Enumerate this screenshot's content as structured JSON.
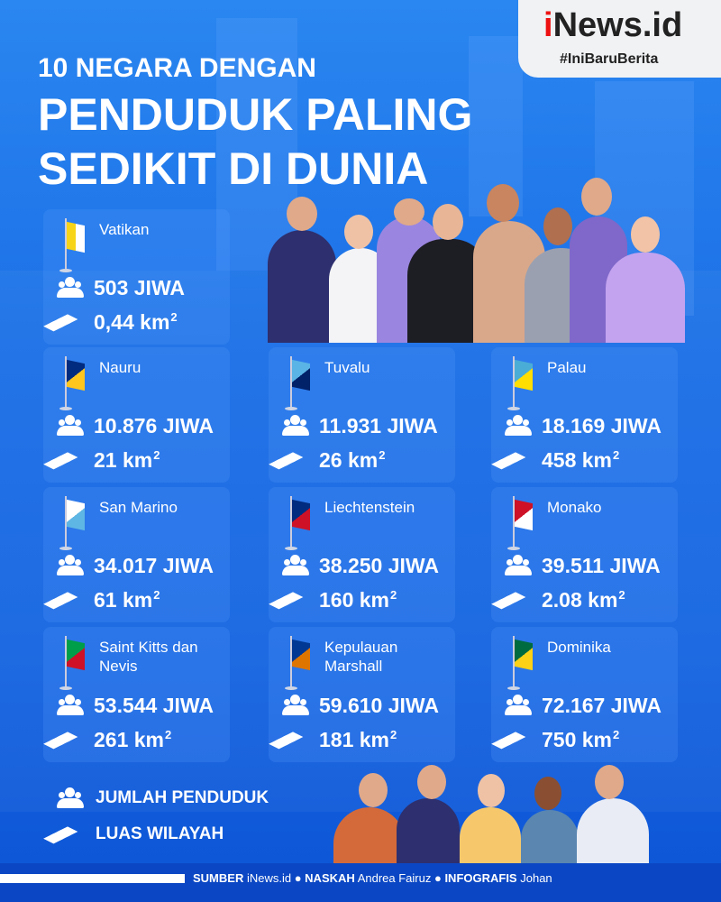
{
  "brand": {
    "logo_prefix": "i",
    "logo_rest": "News.id",
    "tagline": "#IniBaruBerita"
  },
  "title": {
    "line1": "10 NEGARA DENGAN",
    "line2": "PENDUDUK PALING",
    "line3": "SEDIKIT DI DUNIA"
  },
  "unit_suffix": "km",
  "countries": [
    {
      "name": "Vatikan",
      "population": "503 JIWA",
      "area": "0,44 km",
      "flag_colors": [
        "#f7d417",
        "#ffffff"
      ]
    },
    {
      "name": "Nauru",
      "population": "10.876 JIWA",
      "area": "21 km",
      "flag_colors": [
        "#002b7f",
        "#ffc61e"
      ]
    },
    {
      "name": "Tuvalu",
      "population": "11.931 JIWA",
      "area": "26 km",
      "flag_colors": [
        "#5ab4e5",
        "#012169"
      ]
    },
    {
      "name": "Palau",
      "population": "18.169 JIWA",
      "area": "458 km",
      "flag_colors": [
        "#4aadd6",
        "#ffde00"
      ]
    },
    {
      "name": "San Marino",
      "population": "34.017 JIWA",
      "area": "61 km",
      "flag_colors": [
        "#ffffff",
        "#5eb6e4"
      ]
    },
    {
      "name": "Liechtenstein",
      "population": "38.250 JIWA",
      "area": "160 km",
      "flag_colors": [
        "#002b7f",
        "#ce1126"
      ]
    },
    {
      "name": "Monako",
      "population": "39.511 JIWA",
      "area": "2.08 km",
      "flag_colors": [
        "#ce1126",
        "#ffffff"
      ]
    },
    {
      "name": "Saint Kitts dan Nevis",
      "population": "53.544 JIWA",
      "area": "261 km",
      "flag_colors": [
        "#009e49",
        "#ce1126"
      ]
    },
    {
      "name": "Kepulauan Marshall",
      "population": "59.610 JIWA",
      "area": "181 km",
      "flag_colors": [
        "#003893",
        "#dd7500"
      ]
    },
    {
      "name": "Dominika",
      "population": "72.167 JIWA",
      "area": "750 km",
      "flag_colors": [
        "#006b3f",
        "#fcd116"
      ]
    }
  ],
  "legend": {
    "population": "JUMLAH PENDUDUK",
    "area": "LUAS WILAYAH"
  },
  "footer": {
    "source_label": "SUMBER",
    "source": "iNews.id",
    "script_label": "NASKAH",
    "script": "Andrea Fairuz",
    "graphic_label": "INFOGRAFIS",
    "graphic": "Johan"
  }
}
